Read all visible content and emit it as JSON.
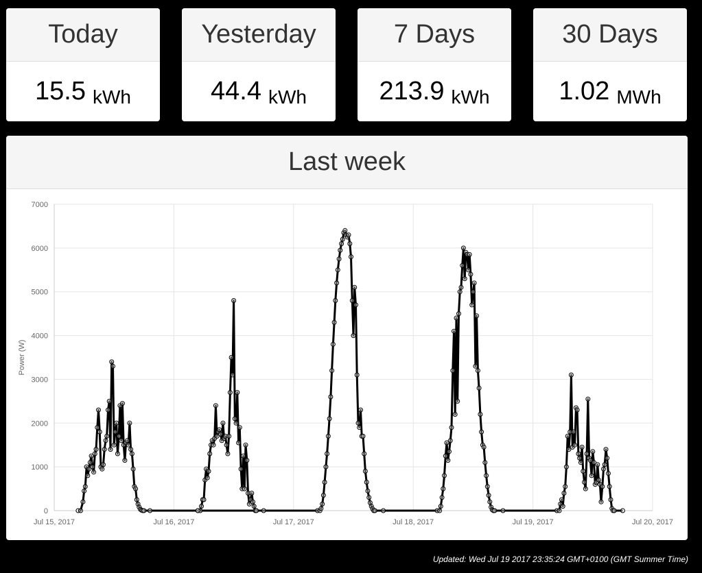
{
  "stats": [
    {
      "label": "Today",
      "value": "15.5",
      "unit": "kWh"
    },
    {
      "label": "Yesterday",
      "value": "44.4",
      "unit": "kWh"
    },
    {
      "label": "7 Days",
      "value": "213.9",
      "unit": "kWh"
    },
    {
      "label": "30 Days",
      "value": "1.02",
      "unit": "MWh"
    }
  ],
  "panel": {
    "title": "Last week"
  },
  "footer": {
    "updated": "Updated: Wed Jul 19 2017 23:35:24 GMT+0100 (GMT Summer Time)"
  },
  "chart_data": {
    "type": "line",
    "title": "Last week",
    "ylabel": "Power (W)",
    "xlabel": "",
    "ylim": [
      0,
      7000
    ],
    "y_ticks": [
      0,
      1000,
      2000,
      3000,
      4000,
      5000,
      6000,
      7000
    ],
    "x_ticks": [
      "Jul 15, 2017",
      "Jul 16, 2017",
      "Jul 17, 2017",
      "Jul 18, 2017",
      "Jul 19, 2017",
      "Jul 20, 2017"
    ],
    "x_unit": "days since Jul 15, 2017 00:00",
    "xlim": [
      0,
      5
    ],
    "grid": true,
    "legend": "none",
    "line_color": "#000000",
    "series": [
      {
        "name": "Power (W)",
        "points": [
          [
            0.2,
            0
          ],
          [
            0.22,
            0
          ],
          [
            0.24,
            200
          ],
          [
            0.25,
            450
          ],
          [
            0.26,
            550
          ],
          [
            0.27,
            1000
          ],
          [
            0.28,
            800
          ],
          [
            0.29,
            950
          ],
          [
            0.3,
            1100
          ],
          [
            0.31,
            1250
          ],
          [
            0.32,
            1000
          ],
          [
            0.33,
            880
          ],
          [
            0.34,
            1300
          ],
          [
            0.35,
            1400
          ],
          [
            0.36,
            1900
          ],
          [
            0.37,
            2300
          ],
          [
            0.38,
            1800
          ],
          [
            0.39,
            1000
          ],
          [
            0.4,
            950
          ],
          [
            0.41,
            1050
          ],
          [
            0.42,
            1400
          ],
          [
            0.43,
            1600
          ],
          [
            0.44,
            1700
          ],
          [
            0.45,
            2300
          ],
          [
            0.46,
            2500
          ],
          [
            0.47,
            1400
          ],
          [
            0.48,
            3400
          ],
          [
            0.49,
            3300
          ],
          [
            0.5,
            1500
          ],
          [
            0.51,
            1800
          ],
          [
            0.52,
            2000
          ],
          [
            0.53,
            1300
          ],
          [
            0.54,
            1700
          ],
          [
            0.55,
            2400
          ],
          [
            0.56,
            1600
          ],
          [
            0.57,
            2450
          ],
          [
            0.58,
            1500
          ],
          [
            0.59,
            1150
          ],
          [
            0.6,
            1550
          ],
          [
            0.61,
            1600
          ],
          [
            0.62,
            1500
          ],
          [
            0.63,
            2000
          ],
          [
            0.64,
            1400
          ],
          [
            0.65,
            1300
          ],
          [
            0.66,
            950
          ],
          [
            0.67,
            550
          ],
          [
            0.68,
            500
          ],
          [
            0.69,
            250
          ],
          [
            0.7,
            150
          ],
          [
            0.71,
            80
          ],
          [
            0.72,
            30
          ],
          [
            0.73,
            10
          ],
          [
            0.74,
            0
          ],
          [
            0.75,
            0
          ],
          [
            0.8,
            0
          ],
          [
            1.2,
            0
          ],
          [
            1.22,
            0
          ],
          [
            1.23,
            100
          ],
          [
            1.24,
            250
          ],
          [
            1.25,
            250
          ],
          [
            1.26,
            700
          ],
          [
            1.27,
            950
          ],
          [
            1.28,
            750
          ],
          [
            1.29,
            900
          ],
          [
            1.3,
            1300
          ],
          [
            1.31,
            1500
          ],
          [
            1.32,
            1600
          ],
          [
            1.33,
            1500
          ],
          [
            1.34,
            1650
          ],
          [
            1.35,
            2400
          ],
          [
            1.36,
            1700
          ],
          [
            1.37,
            1800
          ],
          [
            1.38,
            1850
          ],
          [
            1.39,
            1750
          ],
          [
            1.4,
            1600
          ],
          [
            1.41,
            2000
          ],
          [
            1.42,
            1650
          ],
          [
            1.43,
            1700
          ],
          [
            1.44,
            1500
          ],
          [
            1.45,
            1300
          ],
          [
            1.46,
            1700
          ],
          [
            1.47,
            2700
          ],
          [
            1.48,
            3500
          ],
          [
            1.49,
            3100
          ],
          [
            1.5,
            4800
          ],
          [
            1.51,
            2100
          ],
          [
            1.52,
            2000
          ],
          [
            1.53,
            2700
          ],
          [
            1.54,
            1550
          ],
          [
            1.55,
            1900
          ],
          [
            1.56,
            950
          ],
          [
            1.57,
            500
          ],
          [
            1.58,
            1250
          ],
          [
            1.59,
            500
          ],
          [
            1.6,
            1500
          ],
          [
            1.61,
            1150
          ],
          [
            1.62,
            400
          ],
          [
            1.63,
            150
          ],
          [
            1.64,
            250
          ],
          [
            1.65,
            400
          ],
          [
            1.66,
            200
          ],
          [
            1.67,
            100
          ],
          [
            1.68,
            0
          ],
          [
            1.69,
            0
          ],
          [
            1.75,
            0
          ],
          [
            1.2,
            0
          ],
          [
            2.2,
            0
          ],
          [
            2.22,
            0
          ],
          [
            2.23,
            50
          ],
          [
            2.24,
            150
          ],
          [
            2.25,
            350
          ],
          [
            2.26,
            650
          ],
          [
            2.27,
            1000
          ],
          [
            2.28,
            1300
          ],
          [
            2.29,
            1700
          ],
          [
            2.3,
            2100
          ],
          [
            2.31,
            2600
          ],
          [
            2.32,
            3200
          ],
          [
            2.33,
            3800
          ],
          [
            2.34,
            4300
          ],
          [
            2.35,
            4800
          ],
          [
            2.36,
            5200
          ],
          [
            2.37,
            5500
          ],
          [
            2.38,
            5750
          ],
          [
            2.39,
            5950
          ],
          [
            2.4,
            6100
          ],
          [
            2.41,
            6200
          ],
          [
            2.42,
            6350
          ],
          [
            2.43,
            6400
          ],
          [
            2.44,
            6300
          ],
          [
            2.45,
            6250
          ],
          [
            2.46,
            6300
          ],
          [
            2.47,
            6100
          ],
          [
            2.48,
            5800
          ],
          [
            2.49,
            4800
          ],
          [
            2.5,
            4000
          ],
          [
            2.51,
            5100
          ],
          [
            2.52,
            4700
          ],
          [
            2.53,
            3100
          ],
          [
            2.54,
            2000
          ],
          [
            2.55,
            1900
          ],
          [
            2.56,
            2300
          ],
          [
            2.57,
            1700
          ],
          [
            2.58,
            1700
          ],
          [
            2.59,
            1300
          ],
          [
            2.6,
            900
          ],
          [
            2.61,
            650
          ],
          [
            2.62,
            450
          ],
          [
            2.63,
            300
          ],
          [
            2.64,
            180
          ],
          [
            2.65,
            100
          ],
          [
            2.66,
            40
          ],
          [
            2.67,
            0
          ],
          [
            2.68,
            0
          ],
          [
            2.75,
            0
          ],
          [
            3.2,
            0
          ],
          [
            3.22,
            0
          ],
          [
            3.23,
            100
          ],
          [
            3.24,
            300
          ],
          [
            3.25,
            500
          ],
          [
            3.26,
            800
          ],
          [
            3.27,
            1250
          ],
          [
            3.28,
            1550
          ],
          [
            3.29,
            1150
          ],
          [
            3.3,
            1350
          ],
          [
            3.31,
            1600
          ],
          [
            3.32,
            1900
          ],
          [
            3.33,
            3200
          ],
          [
            3.34,
            4100
          ],
          [
            3.35,
            2200
          ],
          [
            3.36,
            4400
          ],
          [
            3.37,
            2500
          ],
          [
            3.38,
            4500
          ],
          [
            3.39,
            5000
          ],
          [
            3.4,
            5100
          ],
          [
            3.41,
            5600
          ],
          [
            3.42,
            6000
          ],
          [
            3.43,
            5300
          ],
          [
            3.44,
            5900
          ],
          [
            3.45,
            5850
          ],
          [
            3.46,
            5500
          ],
          [
            3.47,
            5850
          ],
          [
            3.48,
            5400
          ],
          [
            3.49,
            4700
          ],
          [
            3.5,
            5000
          ],
          [
            3.51,
            5200
          ],
          [
            3.52,
            3300
          ],
          [
            3.53,
            4450
          ],
          [
            3.54,
            3200
          ],
          [
            3.55,
            2800
          ],
          [
            3.56,
            2200
          ],
          [
            3.57,
            1800
          ],
          [
            3.58,
            1500
          ],
          [
            3.59,
            1450
          ],
          [
            3.6,
            1100
          ],
          [
            3.61,
            800
          ],
          [
            3.62,
            550
          ],
          [
            3.63,
            350
          ],
          [
            3.64,
            200
          ],
          [
            3.65,
            80
          ],
          [
            3.66,
            20
          ],
          [
            3.67,
            0
          ],
          [
            3.68,
            0
          ],
          [
            3.75,
            0
          ],
          [
            4.2,
            0
          ],
          [
            4.22,
            0
          ],
          [
            4.23,
            150
          ],
          [
            4.24,
            250
          ],
          [
            4.25,
            100
          ],
          [
            4.26,
            400
          ],
          [
            4.27,
            550
          ],
          [
            4.28,
            1000
          ],
          [
            4.29,
            1700
          ],
          [
            4.3,
            1400
          ],
          [
            4.31,
            1800
          ],
          [
            4.32,
            3100
          ],
          [
            4.33,
            1450
          ],
          [
            4.34,
            1800
          ],
          [
            4.35,
            1500
          ],
          [
            4.36,
            2350
          ],
          [
            4.37,
            2300
          ],
          [
            4.38,
            1300
          ],
          [
            4.39,
            1200
          ],
          [
            4.4,
            1100
          ],
          [
            4.41,
            1450
          ],
          [
            4.42,
            900
          ],
          [
            4.43,
            650
          ],
          [
            4.44,
            500
          ],
          [
            4.45,
            1300
          ],
          [
            4.46,
            2550
          ],
          [
            4.47,
            1200
          ],
          [
            4.48,
            1150
          ],
          [
            4.49,
            800
          ],
          [
            4.5,
            1350
          ],
          [
            4.51,
            1100
          ],
          [
            4.52,
            600
          ],
          [
            4.53,
            650
          ],
          [
            4.54,
            1050
          ],
          [
            4.55,
            700
          ],
          [
            4.56,
            600
          ],
          [
            4.57,
            200
          ],
          [
            4.58,
            550
          ],
          [
            4.59,
            950
          ],
          [
            4.6,
            1050
          ],
          [
            4.61,
            1400
          ],
          [
            4.62,
            1200
          ],
          [
            4.63,
            850
          ],
          [
            4.64,
            550
          ],
          [
            4.65,
            250
          ],
          [
            4.66,
            50
          ],
          [
            4.67,
            0
          ],
          [
            4.68,
            0
          ],
          [
            4.75,
            0
          ]
        ]
      }
    ]
  }
}
